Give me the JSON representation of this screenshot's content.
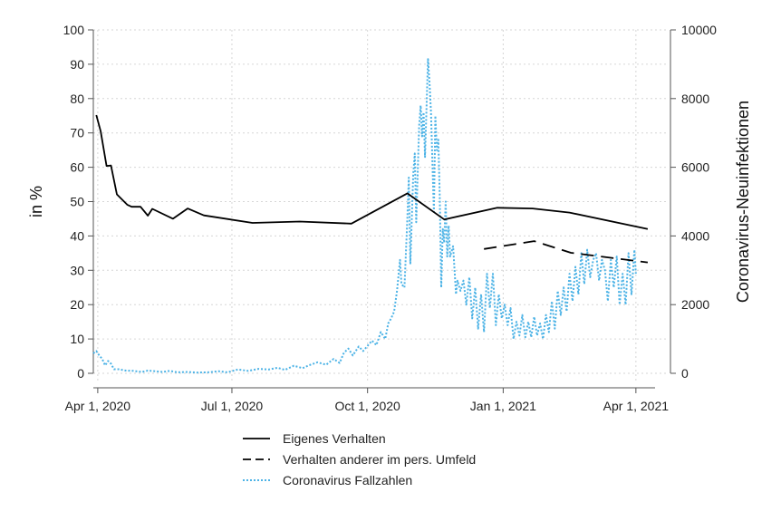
{
  "chart_data": {
    "type": "line",
    "x_axis": {
      "type": "date",
      "range": [
        "2020-03-29",
        "2021-04-14"
      ],
      "ticks": [
        {
          "date": "2020-04-01",
          "label": "Apr 1, 2020"
        },
        {
          "date": "2020-07-01",
          "label": "Jul 1, 2020"
        },
        {
          "date": "2020-10-01",
          "label": "Oct 1, 2020"
        },
        {
          "date": "2021-01-01",
          "label": "Jan 1, 2021"
        },
        {
          "date": "2021-04-01",
          "label": "Apr 1, 2021"
        }
      ],
      "grid": true
    },
    "y_left": {
      "label": "in %",
      "range": [
        0,
        100
      ],
      "ticks": [
        0,
        10,
        20,
        30,
        40,
        50,
        60,
        70,
        80,
        90,
        100
      ],
      "grid": true
    },
    "y_right": {
      "label": "Coronavirus-Neuinfektionen",
      "range": [
        0,
        10000
      ],
      "ticks": [
        0,
        2000,
        4000,
        6000,
        8000,
        10000
      ]
    },
    "series": [
      {
        "name": "Eigenes Verhalten",
        "axis": "left",
        "style": "solid",
        "color": "#000000",
        "points": [
          [
            "2020-03-31",
            75.2
          ],
          [
            "2020-04-03",
            70.5
          ],
          [
            "2020-04-07",
            60.4
          ],
          [
            "2020-04-10",
            60.5
          ],
          [
            "2020-04-14",
            52.1
          ],
          [
            "2020-04-21",
            49.1
          ],
          [
            "2020-04-24",
            48.5
          ],
          [
            "2020-04-30",
            48.5
          ],
          [
            "2020-05-05",
            45.9
          ],
          [
            "2020-05-08",
            47.9
          ],
          [
            "2020-05-22",
            45.0
          ],
          [
            "2020-06-01",
            48.0
          ],
          [
            "2020-06-12",
            46.0
          ],
          [
            "2020-07-15",
            43.8
          ],
          [
            "2020-08-16",
            44.2
          ],
          [
            "2020-09-20",
            43.6
          ],
          [
            "2020-10-28",
            52.4
          ],
          [
            "2020-11-22",
            44.8
          ],
          [
            "2020-12-28",
            48.2
          ],
          [
            "2021-01-21",
            48.0
          ],
          [
            "2021-02-15",
            46.8
          ],
          [
            "2021-04-09",
            42.0
          ]
        ]
      },
      {
        "name": "Verhalten anderer im pers. Umfeld",
        "axis": "left",
        "style": "dashed",
        "color": "#000000",
        "points": [
          [
            "2020-12-19",
            36.2
          ],
          [
            "2021-01-22",
            38.5
          ],
          [
            "2021-02-16",
            35.1
          ],
          [
            "2021-04-09",
            32.3
          ]
        ]
      },
      {
        "name": "Coronavirus Fallzahlen",
        "axis": "right",
        "style": "dotted",
        "color": "#4db3e6",
        "points": [
          [
            "2020-03-29",
            580
          ],
          [
            "2020-03-31",
            650
          ],
          [
            "2020-04-02",
            520
          ],
          [
            "2020-04-04",
            420
          ],
          [
            "2020-04-06",
            230
          ],
          [
            "2020-04-08",
            360
          ],
          [
            "2020-04-10",
            280
          ],
          [
            "2020-04-12",
            120
          ],
          [
            "2020-04-15",
            120
          ],
          [
            "2020-04-20",
            80
          ],
          [
            "2020-04-25",
            70
          ],
          [
            "2020-05-01",
            40
          ],
          [
            "2020-05-05",
            80
          ],
          [
            "2020-05-10",
            60
          ],
          [
            "2020-05-15",
            40
          ],
          [
            "2020-05-20",
            70
          ],
          [
            "2020-05-25",
            30
          ],
          [
            "2020-06-01",
            40
          ],
          [
            "2020-06-07",
            20
          ],
          [
            "2020-06-15",
            30
          ],
          [
            "2020-06-22",
            60
          ],
          [
            "2020-06-28",
            30
          ],
          [
            "2020-07-05",
            110
          ],
          [
            "2020-07-12",
            70
          ],
          [
            "2020-07-19",
            130
          ],
          [
            "2020-07-26",
            110
          ],
          [
            "2020-08-01",
            160
          ],
          [
            "2020-08-06",
            100
          ],
          [
            "2020-08-12",
            220
          ],
          [
            "2020-08-18",
            150
          ],
          [
            "2020-08-22",
            230
          ],
          [
            "2020-08-28",
            320
          ],
          [
            "2020-09-03",
            250
          ],
          [
            "2020-09-08",
            420
          ],
          [
            "2020-09-12",
            300
          ],
          [
            "2020-09-15",
            600
          ],
          [
            "2020-09-18",
            720
          ],
          [
            "2020-09-21",
            520
          ],
          [
            "2020-09-25",
            780
          ],
          [
            "2020-09-28",
            650
          ],
          [
            "2020-10-01",
            800
          ],
          [
            "2020-10-04",
            950
          ],
          [
            "2020-10-07",
            820
          ],
          [
            "2020-10-10",
            1200
          ],
          [
            "2020-10-13",
            1000
          ],
          [
            "2020-10-15",
            1450
          ],
          [
            "2020-10-17",
            1600
          ],
          [
            "2020-10-19",
            1800
          ],
          [
            "2020-10-21",
            2400
          ],
          [
            "2020-10-23",
            3300
          ],
          [
            "2020-10-24",
            2600
          ],
          [
            "2020-10-26",
            2500
          ],
          [
            "2020-10-28",
            4500
          ],
          [
            "2020-10-29",
            5700
          ],
          [
            "2020-10-30",
            3200
          ],
          [
            "2020-11-01",
            5800
          ],
          [
            "2020-11-02",
            6400
          ],
          [
            "2020-11-03",
            4400
          ],
          [
            "2020-11-05",
            7200
          ],
          [
            "2020-11-06",
            7800
          ],
          [
            "2020-11-07",
            6900
          ],
          [
            "2020-11-08",
            7600
          ],
          [
            "2020-11-09",
            6300
          ],
          [
            "2020-11-11",
            9150
          ],
          [
            "2020-11-12",
            8500
          ],
          [
            "2020-11-13",
            7600
          ],
          [
            "2020-11-14",
            6100
          ],
          [
            "2020-11-15",
            4700
          ],
          [
            "2020-11-16",
            7500
          ],
          [
            "2020-11-17",
            6500
          ],
          [
            "2020-11-18",
            6800
          ],
          [
            "2020-11-19",
            5100
          ],
          [
            "2020-11-20",
            2500
          ],
          [
            "2020-11-21",
            4200
          ],
          [
            "2020-11-22",
            3800
          ],
          [
            "2020-11-23",
            5000
          ],
          [
            "2020-11-24",
            3400
          ],
          [
            "2020-11-25",
            4300
          ],
          [
            "2020-11-26",
            3400
          ],
          [
            "2020-11-28",
            3700
          ],
          [
            "2020-11-30",
            2300
          ],
          [
            "2020-12-01",
            2700
          ],
          [
            "2020-12-03",
            2400
          ],
          [
            "2020-12-05",
            2700
          ],
          [
            "2020-12-07",
            2000
          ],
          [
            "2020-12-09",
            2800
          ],
          [
            "2020-12-11",
            1600
          ],
          [
            "2020-12-13",
            2500
          ],
          [
            "2020-12-15",
            1300
          ],
          [
            "2020-12-17",
            2300
          ],
          [
            "2020-12-19",
            1200
          ],
          [
            "2020-12-21",
            2900
          ],
          [
            "2020-12-23",
            1900
          ],
          [
            "2020-12-25",
            2900
          ],
          [
            "2020-12-27",
            1400
          ],
          [
            "2020-12-29",
            2300
          ],
          [
            "2020-12-31",
            1600
          ],
          [
            "2021-01-02",
            2000
          ],
          [
            "2021-01-04",
            1400
          ],
          [
            "2021-01-06",
            1900
          ],
          [
            "2021-01-08",
            1000
          ],
          [
            "2021-01-10",
            1500
          ],
          [
            "2021-01-12",
            1100
          ],
          [
            "2021-01-14",
            1700
          ],
          [
            "2021-01-16",
            1050
          ],
          [
            "2021-01-18",
            1500
          ],
          [
            "2021-01-20",
            1050
          ],
          [
            "2021-01-22",
            1650
          ],
          [
            "2021-01-24",
            1100
          ],
          [
            "2021-01-26",
            1450
          ],
          [
            "2021-01-28",
            1000
          ],
          [
            "2021-01-30",
            1700
          ],
          [
            "2021-02-01",
            1200
          ],
          [
            "2021-02-03",
            2100
          ],
          [
            "2021-02-05",
            1300
          ],
          [
            "2021-02-07",
            2400
          ],
          [
            "2021-02-09",
            1700
          ],
          [
            "2021-02-11",
            2500
          ],
          [
            "2021-02-13",
            1800
          ],
          [
            "2021-02-15",
            2900
          ],
          [
            "2021-02-17",
            2100
          ],
          [
            "2021-02-19",
            3100
          ],
          [
            "2021-02-21",
            2300
          ],
          [
            "2021-02-23",
            3500
          ],
          [
            "2021-02-25",
            2600
          ],
          [
            "2021-02-27",
            3600
          ],
          [
            "2021-03-01",
            2800
          ],
          [
            "2021-03-03",
            3300
          ],
          [
            "2021-03-05",
            3500
          ],
          [
            "2021-03-07",
            2700
          ],
          [
            "2021-03-09",
            3300
          ],
          [
            "2021-03-11",
            3000
          ],
          [
            "2021-03-13",
            2100
          ],
          [
            "2021-03-15",
            3300
          ],
          [
            "2021-03-17",
            2500
          ],
          [
            "2021-03-19",
            3400
          ],
          [
            "2021-03-21",
            2000
          ],
          [
            "2021-03-23",
            2900
          ],
          [
            "2021-03-25",
            2000
          ],
          [
            "2021-03-27",
            3500
          ],
          [
            "2021-03-29",
            2300
          ],
          [
            "2021-03-31",
            3600
          ],
          [
            "2021-04-01",
            2900
          ]
        ]
      }
    ],
    "legend": {
      "placement": "bottom-center",
      "entries": [
        {
          "label": "Eigenes Verhalten",
          "style": "solid",
          "color": "#000000"
        },
        {
          "label": "Verhalten anderer im pers. Umfeld",
          "style": "dashed",
          "color": "#000000"
        },
        {
          "label": "Coronavirus Fallzahlen",
          "style": "dotted",
          "color": "#4db3e6"
        }
      ]
    }
  }
}
